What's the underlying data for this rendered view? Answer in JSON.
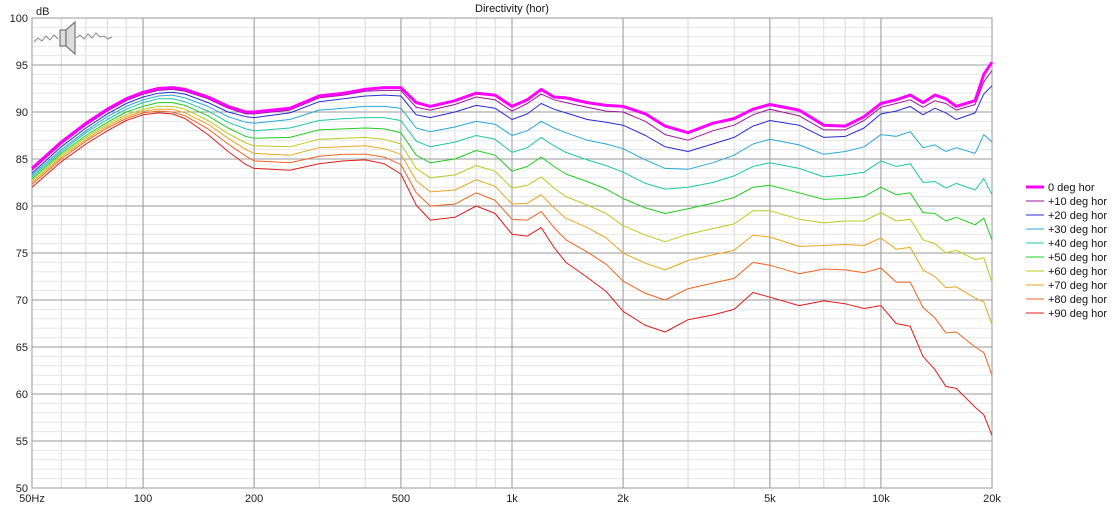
{
  "chart_data": {
    "type": "line",
    "title": "Directivity (hor)",
    "ylabel": "dB",
    "xscale": "log",
    "xlim": [
      50,
      20000
    ],
    "ylim": [
      50,
      100
    ],
    "grid": true,
    "legend_position": "right",
    "xticks": [
      {
        "value": 50,
        "label": "50Hz"
      },
      {
        "value": 100,
        "label": "100"
      },
      {
        "value": 200,
        "label": "200"
      },
      {
        "value": 500,
        "label": "500"
      },
      {
        "value": 1000,
        "label": "1k"
      },
      {
        "value": 2000,
        "label": "2k"
      },
      {
        "value": 5000,
        "label": "5k"
      },
      {
        "value": 10000,
        "label": "10k"
      },
      {
        "value": 20000,
        "label": "20k"
      }
    ],
    "yticks": [
      {
        "value": 50,
        "label": "50"
      },
      {
        "value": 55,
        "label": "55"
      },
      {
        "value": 60,
        "label": "60"
      },
      {
        "value": 65,
        "label": "65"
      },
      {
        "value": 70,
        "label": "70"
      },
      {
        "value": 75,
        "label": "75"
      },
      {
        "value": 80,
        "label": "80"
      },
      {
        "value": 85,
        "label": "85"
      },
      {
        "value": 90,
        "label": "90"
      },
      {
        "value": 95,
        "label": "95"
      },
      {
        "value": 100,
        "label": "100"
      }
    ],
    "x": [
      50,
      60,
      70,
      80,
      90,
      100,
      110,
      120,
      130,
      150,
      170,
      190,
      200,
      250,
      300,
      350,
      400,
      450,
      500,
      550,
      600,
      700,
      800,
      900,
      1000,
      1100,
      1200,
      1300,
      1400,
      1600,
      1800,
      2000,
      2300,
      2600,
      3000,
      3500,
      4000,
      4500,
      5000,
      6000,
      7000,
      8000,
      9000,
      10000,
      11000,
      12000,
      13000,
      14000,
      15000,
      16000,
      18000,
      19000,
      20000
    ],
    "series": [
      {
        "name": "0 deg hor",
        "color": "#ff00ff",
        "width": 3,
        "values": [
          84,
          86.8,
          88.8,
          90.3,
          91.4,
          92.1,
          92.5,
          92.6,
          92.4,
          91.6,
          90.6,
          90.0,
          90.0,
          90.4,
          91.7,
          92.0,
          92.4,
          92.6,
          92.6,
          91,
          90.6,
          91.2,
          92.0,
          91.8,
          90.6,
          91.3,
          92.4,
          91.6,
          91.5,
          91.0,
          90.7,
          90.6,
          89.8,
          88.5,
          87.8,
          88.8,
          89.3,
          90.3,
          90.8,
          90.2,
          88.6,
          88.5,
          89.5,
          90.9,
          91.3,
          91.8,
          91.0,
          91.8,
          91.4,
          90.6,
          91.2,
          94.0,
          95.3
        ]
      },
      {
        "name": "+10 deg hor",
        "color": "#9a179a",
        "width": 1,
        "values": [
          83.8,
          86.6,
          88.6,
          90.1,
          91.2,
          91.9,
          92.3,
          92.4,
          92.2,
          91.4,
          90.4,
          89.8,
          89.8,
          90.2,
          91.5,
          91.8,
          92.2,
          92.3,
          92.3,
          90.5,
          90.2,
          90.8,
          91.6,
          91.3,
          90.1,
          90.9,
          91.9,
          91.3,
          91.0,
          90.5,
          90.1,
          90.0,
          89.0,
          87.6,
          87.0,
          88.0,
          88.6,
          89.7,
          90.3,
          89.6,
          88.1,
          88.1,
          89.1,
          90.5,
          90.9,
          91.3,
          90.5,
          91.2,
          90.9,
          90.2,
          90.8,
          93.2,
          94.4
        ]
      },
      {
        "name": "+20 deg hor",
        "color": "#2b2bd6",
        "width": 1,
        "values": [
          83.5,
          86.3,
          88.3,
          89.8,
          90.9,
          91.6,
          92.0,
          92.1,
          91.9,
          91.0,
          90.0,
          89.5,
          89.4,
          89.9,
          91.1,
          91.4,
          91.7,
          91.8,
          91.7,
          89.7,
          89.4,
          90.0,
          90.7,
          90.4,
          89.2,
          89.8,
          90.9,
          90.3,
          89.9,
          89.2,
          88.9,
          88.6,
          87.5,
          86.3,
          85.8,
          86.6,
          87.3,
          88.5,
          89.1,
          88.6,
          87.3,
          87.4,
          88.3,
          89.8,
          90.1,
          90.6,
          89.7,
          90.4,
          89.9,
          89.2,
          89.9,
          91.9,
          92.8
        ]
      },
      {
        "name": "+30 deg hor",
        "color": "#2aa8d8",
        "width": 1,
        "values": [
          83.3,
          86.0,
          88.0,
          89.5,
          90.6,
          91.3,
          91.7,
          91.8,
          91.5,
          90.6,
          89.5,
          88.9,
          88.8,
          89.2,
          90.2,
          90.4,
          90.6,
          90.6,
          90.4,
          88.3,
          87.9,
          88.4,
          89.0,
          88.7,
          87.5,
          88.0,
          89.0,
          88.3,
          87.8,
          87.0,
          86.6,
          86.1,
          84.9,
          84.0,
          83.9,
          84.6,
          85.4,
          86.6,
          87.1,
          86.5,
          85.5,
          85.8,
          86.3,
          87.6,
          87.4,
          87.9,
          86.2,
          86.5,
          85.8,
          86.2,
          85.6,
          87.6,
          86.8
        ]
      },
      {
        "name": "+40 deg hor",
        "color": "#20c8a0",
        "width": 1,
        "values": [
          83.1,
          85.8,
          87.8,
          89.2,
          90.3,
          91.0,
          91.4,
          91.4,
          91.1,
          90.1,
          88.9,
          88.2,
          88.0,
          88.3,
          89.1,
          89.3,
          89.4,
          89.4,
          89.1,
          86.9,
          86.3,
          86.8,
          87.5,
          87.1,
          85.7,
          86.2,
          87.3,
          86.4,
          85.7,
          84.9,
          84.3,
          83.6,
          82.4,
          81.8,
          82.0,
          82.5,
          83.2,
          84.2,
          84.6,
          84.0,
          83.1,
          83.3,
          83.6,
          84.8,
          84.2,
          84.5,
          82.5,
          82.6,
          81.9,
          82.4,
          81.7,
          82.9,
          81.2
        ]
      },
      {
        "name": "+50 deg hor",
        "color": "#22cc22",
        "width": 1,
        "values": [
          82.9,
          85.6,
          87.5,
          88.9,
          90.0,
          90.6,
          91.0,
          91.0,
          90.7,
          89.6,
          88.3,
          87.4,
          87.2,
          87.3,
          88.1,
          88.2,
          88.3,
          88.2,
          87.8,
          85.4,
          84.6,
          85.0,
          85.9,
          85.4,
          83.7,
          84.2,
          85.2,
          84.2,
          83.4,
          82.6,
          81.8,
          80.8,
          79.8,
          79.2,
          79.7,
          80.3,
          80.9,
          82.0,
          82.2,
          81.4,
          80.7,
          80.8,
          81.0,
          82.0,
          81.2,
          81.4,
          79.3,
          79.2,
          78.4,
          78.8,
          78.0,
          78.7,
          76.4
        ]
      },
      {
        "name": "+60 deg hor",
        "color": "#b8cc20",
        "width": 1,
        "values": [
          82.7,
          85.4,
          87.3,
          88.7,
          89.7,
          90.3,
          90.6,
          90.6,
          90.3,
          89.1,
          87.7,
          86.7,
          86.4,
          86.3,
          87.1,
          87.2,
          87.3,
          87.1,
          86.6,
          84.0,
          83.0,
          83.3,
          84.3,
          83.7,
          81.9,
          82.2,
          83.1,
          81.9,
          81.0,
          80.1,
          79.2,
          77.9,
          76.9,
          76.2,
          77.0,
          77.6,
          78.1,
          79.5,
          79.5,
          78.6,
          78.2,
          78.4,
          78.4,
          79.3,
          78.4,
          78.6,
          76.4,
          76.0,
          75.0,
          75.3,
          74.3,
          74.5,
          71.9
        ]
      },
      {
        "name": "+70 deg hor",
        "color": "#e8a620",
        "width": 1,
        "values": [
          82.5,
          85.2,
          87.1,
          88.5,
          89.5,
          90.1,
          90.3,
          90.3,
          89.9,
          88.7,
          87.2,
          86.0,
          85.6,
          85.4,
          86.2,
          86.3,
          86.4,
          86.1,
          85.5,
          82.7,
          81.5,
          81.7,
          82.8,
          82.1,
          80.2,
          80.3,
          81.2,
          79.8,
          78.7,
          77.7,
          76.6,
          75.0,
          73.9,
          73.2,
          74.2,
          74.8,
          75.3,
          76.9,
          76.7,
          75.7,
          75.8,
          75.9,
          75.8,
          76.6,
          75.4,
          75.6,
          73.2,
          72.5,
          71.3,
          71.4,
          70.2,
          69.8,
          67.4
        ]
      },
      {
        "name": "+80 deg hor",
        "color": "#f06424",
        "width": 1,
        "values": [
          82.3,
          85.0,
          86.9,
          88.3,
          89.3,
          89.9,
          90.1,
          90.0,
          89.6,
          88.2,
          86.6,
          85.3,
          84.8,
          84.6,
          85.3,
          85.5,
          85.5,
          85.2,
          84.4,
          81.4,
          80.0,
          80.2,
          81.4,
          80.6,
          78.6,
          78.5,
          79.4,
          77.7,
          76.4,
          75.1,
          73.8,
          72.0,
          70.7,
          70.0,
          71.2,
          71.8,
          72.3,
          74.0,
          73.7,
          72.8,
          73.3,
          73.2,
          72.9,
          73.4,
          71.9,
          71.9,
          69.2,
          68.1,
          66.5,
          66.6,
          65.0,
          64.4,
          62.0
        ]
      },
      {
        "name": "+90 deg hor",
        "color": "#e01c1c",
        "width": 1,
        "values": [
          82.0,
          84.7,
          86.6,
          88.0,
          89.1,
          89.7,
          89.9,
          89.8,
          89.3,
          87.6,
          85.8,
          84.4,
          84.0,
          83.8,
          84.5,
          84.8,
          84.9,
          84.5,
          83.4,
          80.1,
          78.5,
          78.8,
          80.0,
          79.2,
          77.0,
          76.8,
          77.7,
          75.6,
          74.0,
          72.4,
          70.9,
          68.8,
          67.3,
          66.6,
          67.9,
          68.4,
          69.0,
          70.8,
          70.3,
          69.4,
          69.9,
          69.6,
          69.1,
          69.4,
          67.5,
          67.2,
          64.0,
          62.6,
          60.8,
          60.6,
          58.6,
          57.8,
          55.6
        ]
      }
    ]
  },
  "watermark": {
    "icon": "speaker-icon"
  }
}
